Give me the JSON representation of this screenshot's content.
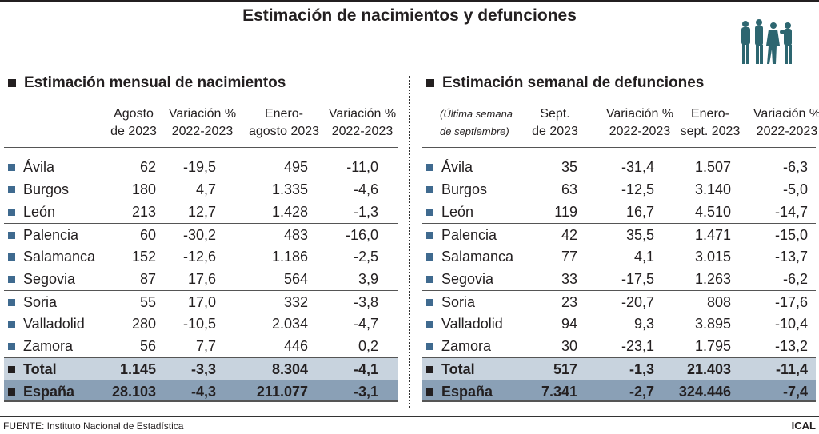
{
  "title": "Estimación de nacimientos y defunciones",
  "colors": {
    "bullet": "#3f6a8f",
    "total_row": "#c8d3de",
    "espana_row": "#8aa0b6",
    "icon": "#2d6670"
  },
  "left": {
    "title": "Estimación mensual de nacimientos",
    "note": "",
    "headers": [
      "Agosto\nde 2023",
      "Variación %\n2022-2023",
      "Enero-\nagosto 2023",
      "Variación %\n2022-2023"
    ],
    "rows": [
      [
        "Ávila",
        "62",
        "-19,5",
        "495",
        "-11,0"
      ],
      [
        "Burgos",
        "180",
        "4,7",
        "1.335",
        "-4,6"
      ],
      [
        "León",
        "213",
        "12,7",
        "1.428",
        "-1,3"
      ],
      [
        "Palencia",
        "60",
        "-30,2",
        "483",
        "-16,0"
      ],
      [
        "Salamanca",
        "152",
        "-12,6",
        "1.186",
        "-2,5"
      ],
      [
        "Segovia",
        "87",
        "17,6",
        "564",
        "3,9"
      ],
      [
        "Soria",
        "55",
        "17,0",
        "332",
        "-3,8"
      ],
      [
        "Valladolid",
        "280",
        "-10,5",
        "2.034",
        "-4,7"
      ],
      [
        "Zamora",
        "56",
        "7,7",
        "446",
        "0,2"
      ],
      [
        "Total",
        "1.145",
        "-3,3",
        "8.304",
        "-4,1"
      ],
      [
        "España",
        "28.103",
        "-4,3",
        "211.077",
        "-3,1"
      ]
    ]
  },
  "right": {
    "title": "Estimación semanal de defunciones",
    "note": "(Última semana\nde septiembre)",
    "headers": [
      "Sept.\nde 2023",
      "Variación %\n2022-2023",
      "Enero-\nsept. 2023",
      "Variación %\n2022-2023"
    ],
    "rows": [
      [
        "Ávila",
        "35",
        "-31,4",
        "1.507",
        "-6,3"
      ],
      [
        "Burgos",
        "63",
        "-12,5",
        "3.140",
        "-5,0"
      ],
      [
        "León",
        "119",
        "16,7",
        "4.510",
        "-14,7"
      ],
      [
        "Palencia",
        "42",
        "35,5",
        "1.471",
        "-15,0"
      ],
      [
        "Salamanca",
        "77",
        "4,1",
        "3.015",
        "-13,7"
      ],
      [
        "Segovia",
        "33",
        "-17,5",
        "1.263",
        "-6,2"
      ],
      [
        "Soria",
        "23",
        "-20,7",
        "808",
        "-17,6"
      ],
      [
        "Valladolid",
        "94",
        "9,3",
        "3.895",
        "-10,4"
      ],
      [
        "Zamora",
        "30",
        "-23,1",
        "1.795",
        "-13,2"
      ],
      [
        "Total",
        "517",
        "-1,3",
        "21.403",
        "-11,4"
      ],
      [
        "España",
        "7.341",
        "-2,7",
        "324.446",
        "-7,4"
      ]
    ]
  },
  "footer": {
    "source": "FUENTE: Instituto Nacional de Estadística",
    "brand": "ICAL"
  }
}
